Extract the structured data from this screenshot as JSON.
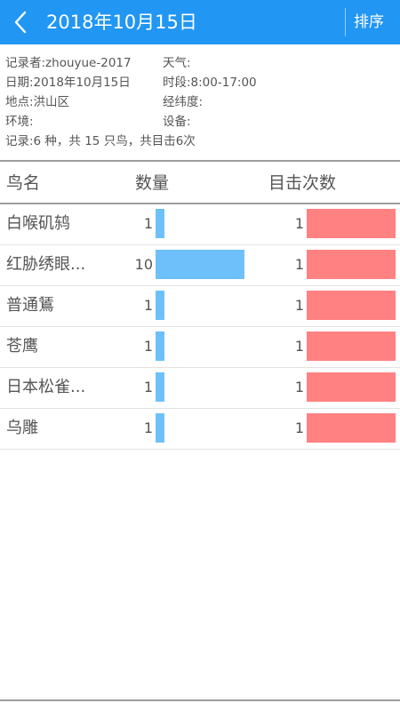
{
  "header": {
    "title": "2018年10月15日",
    "sort_label": "排序",
    "color": "#2196f3"
  },
  "info": {
    "recorder": "记录者:zhouyue-2017",
    "weather": "天气:",
    "date": "日期:2018年10月15日",
    "period": "时段:8:00-17:00",
    "location": "地点:洪山区",
    "coords": "经纬度:",
    "environment": "环境:",
    "equipment": "设备:",
    "summary": "记录:6 种，共 15 只鸟，共目击6次"
  },
  "table": {
    "headers": {
      "name": "鸟名",
      "count": "数量",
      "sightings": "目击次数"
    },
    "max_count": 10,
    "max_sightings": 1,
    "count_bar_color": "#6ec0fb",
    "sight_bar_color": "#ff8181",
    "rows": [
      {
        "name": "白喉矶鸫",
        "count": "1",
        "sightings": "1"
      },
      {
        "name": "红胁绣眼...",
        "count": "10",
        "sightings": "1"
      },
      {
        "name": "普通鵟",
        "count": "1",
        "sightings": "1"
      },
      {
        "name": "苍鹰",
        "count": "1",
        "sightings": "1"
      },
      {
        "name": "日本松雀...",
        "count": "1",
        "sightings": "1"
      },
      {
        "name": "乌雕",
        "count": "1",
        "sightings": "1"
      }
    ]
  }
}
